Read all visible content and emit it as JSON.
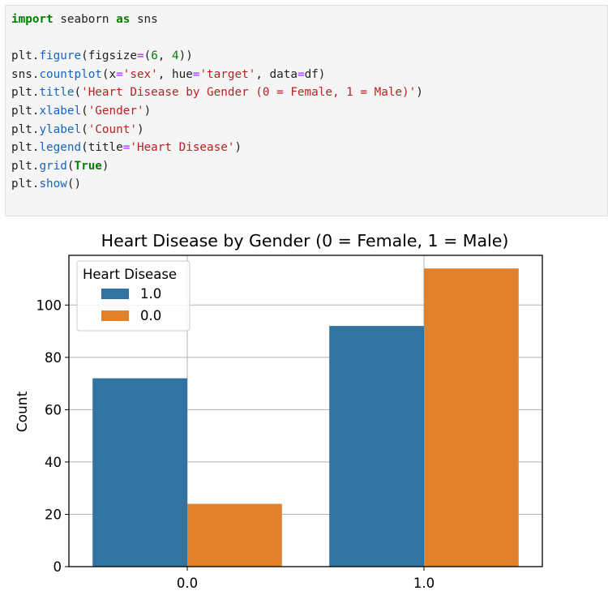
{
  "code_cell": {
    "lines": [
      [
        {
          "t": "import",
          "c": "kw"
        },
        {
          "t": " seaborn ",
          "c": "plain"
        },
        {
          "t": "as",
          "c": "kw"
        },
        {
          "t": " sns",
          "c": "plain"
        }
      ],
      [],
      [
        {
          "t": "plt.",
          "c": "plain"
        },
        {
          "t": "figure",
          "c": "fn"
        },
        {
          "t": "(figsize",
          "c": "plain"
        },
        {
          "t": "=",
          "c": "op"
        },
        {
          "t": "(",
          "c": "plain"
        },
        {
          "t": "6",
          "c": "num"
        },
        {
          "t": ", ",
          "c": "plain"
        },
        {
          "t": "4",
          "c": "num"
        },
        {
          "t": "))",
          "c": "plain"
        }
      ],
      [
        {
          "t": "sns.",
          "c": "plain"
        },
        {
          "t": "countplot",
          "c": "fn"
        },
        {
          "t": "(x",
          "c": "plain"
        },
        {
          "t": "=",
          "c": "op"
        },
        {
          "t": "'sex'",
          "c": "str"
        },
        {
          "t": ", hue",
          "c": "plain"
        },
        {
          "t": "=",
          "c": "op"
        },
        {
          "t": "'target'",
          "c": "str"
        },
        {
          "t": ", data",
          "c": "plain"
        },
        {
          "t": "=",
          "c": "op"
        },
        {
          "t": "df)",
          "c": "plain"
        }
      ],
      [
        {
          "t": "plt.",
          "c": "plain"
        },
        {
          "t": "title",
          "c": "fn"
        },
        {
          "t": "(",
          "c": "plain"
        },
        {
          "t": "'Heart Disease by Gender (0 = Female, 1 = Male)'",
          "c": "str"
        },
        {
          "t": ")",
          "c": "plain"
        }
      ],
      [
        {
          "t": "plt.",
          "c": "plain"
        },
        {
          "t": "xlabel",
          "c": "fn"
        },
        {
          "t": "(",
          "c": "plain"
        },
        {
          "t": "'Gender'",
          "c": "str"
        },
        {
          "t": ")",
          "c": "plain"
        }
      ],
      [
        {
          "t": "plt.",
          "c": "plain"
        },
        {
          "t": "ylabel",
          "c": "fn"
        },
        {
          "t": "(",
          "c": "plain"
        },
        {
          "t": "'Count'",
          "c": "str"
        },
        {
          "t": ")",
          "c": "plain"
        }
      ],
      [
        {
          "t": "plt.",
          "c": "plain"
        },
        {
          "t": "legend",
          "c": "fn"
        },
        {
          "t": "(title",
          "c": "plain"
        },
        {
          "t": "=",
          "c": "op"
        },
        {
          "t": "'Heart Disease'",
          "c": "str"
        },
        {
          "t": ")",
          "c": "plain"
        }
      ],
      [
        {
          "t": "plt.",
          "c": "plain"
        },
        {
          "t": "grid",
          "c": "fn"
        },
        {
          "t": "(",
          "c": "plain"
        },
        {
          "t": "True",
          "c": "kw"
        },
        {
          "t": ")",
          "c": "plain"
        }
      ],
      [
        {
          "t": "plt.",
          "c": "plain"
        },
        {
          "t": "show",
          "c": "fn"
        },
        {
          "t": "()",
          "c": "plain"
        }
      ]
    ]
  },
  "colors": {
    "series_1": "#3274a1",
    "series_0": "#e1812c",
    "grid": "#b0b0b0",
    "axes": "#000000",
    "code_kw": "#008000",
    "code_fn": "#1565c0",
    "code_str": "#ba2121",
    "code_op": "#aa22ff"
  },
  "chart_data": {
    "type": "bar",
    "title": "Heart Disease by Gender (0 = Female, 1 = Male)",
    "xlabel": "",
    "ylabel": "Count",
    "categories": [
      "0.0",
      "1.0"
    ],
    "series": [
      {
        "name": "1.0",
        "values": [
          72,
          92
        ]
      },
      {
        "name": "0.0",
        "values": [
          24,
          114
        ]
      }
    ],
    "ylim": [
      0,
      119
    ],
    "yticks": [
      0,
      20,
      40,
      60,
      80,
      100
    ],
    "legend": {
      "title": "Heart Disease",
      "placement": "top-left"
    },
    "grid": true
  }
}
